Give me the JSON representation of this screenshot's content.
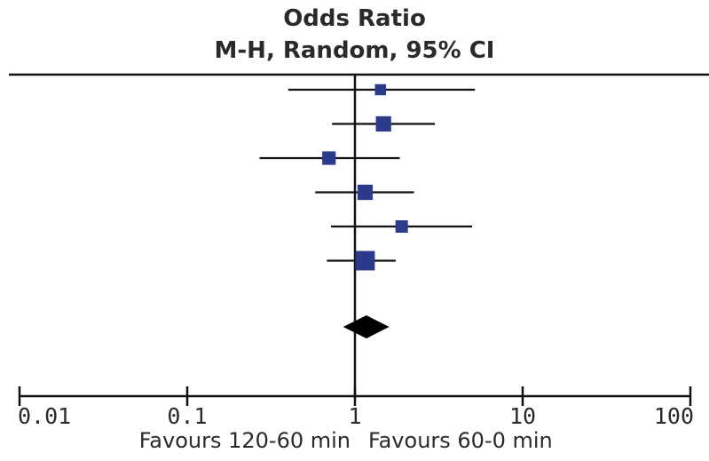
{
  "chart_data": {
    "type": "forest",
    "title": "Odds Ratio",
    "subtitle": "M-H, Random, 95% CI",
    "x_scale": "log",
    "xlim": [
      0.01,
      100
    ],
    "ticks": [
      {
        "value": 0.01,
        "label": "0.01"
      },
      {
        "value": 0.1,
        "label": "0.1"
      },
      {
        "value": 1,
        "label": "1"
      },
      {
        "value": 10,
        "label": "10"
      },
      {
        "value": 100,
        "label": "100"
      }
    ],
    "studies": [
      {
        "or": 1.42,
        "lower": 0.4,
        "upper": 5.2,
        "weight": 1
      },
      {
        "or": 1.48,
        "lower": 0.73,
        "upper": 3.0,
        "weight": 3
      },
      {
        "or": 0.7,
        "lower": 0.27,
        "upper": 1.85,
        "weight": 2
      },
      {
        "or": 1.15,
        "lower": 0.58,
        "upper": 2.25,
        "weight": 3
      },
      {
        "or": 1.9,
        "lower": 0.72,
        "upper": 5.0,
        "weight": 1.5
      },
      {
        "or": 1.15,
        "lower": 0.68,
        "upper": 1.75,
        "weight": 6
      }
    ],
    "pooled": {
      "or": 1.17,
      "lower": 0.85,
      "upper": 1.6
    },
    "favours_left": "Favours 120-60 min",
    "favours_right": "Favours 60-0 min"
  }
}
